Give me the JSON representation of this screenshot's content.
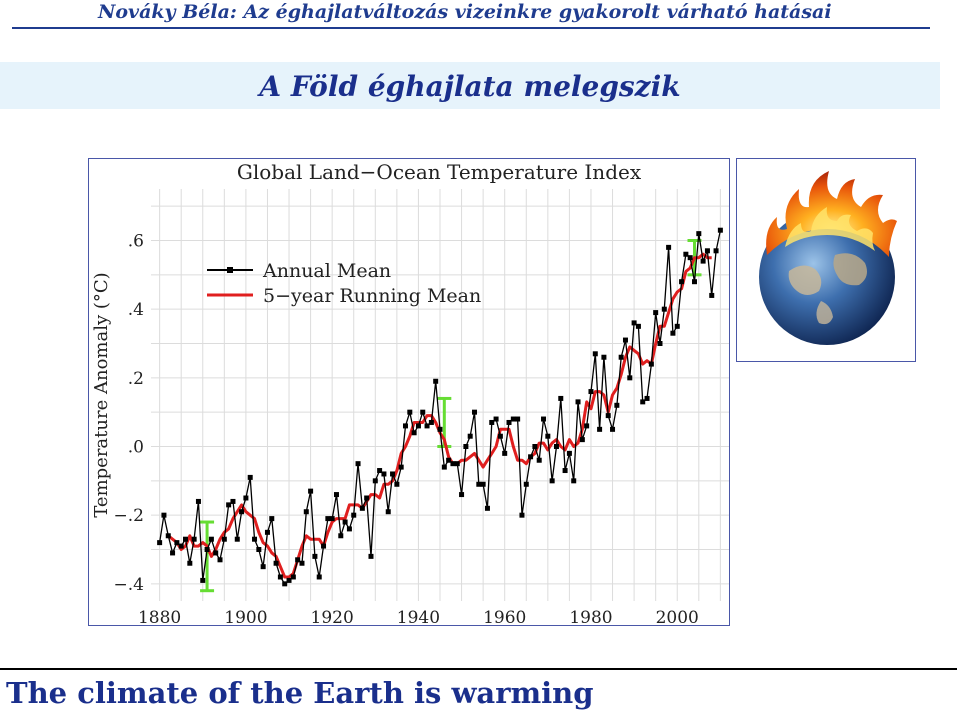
{
  "header": {
    "text": "Nováky Béla: Az éghajlatváltozás vizeinkre gyakorolt várható hatásai"
  },
  "slide": {
    "title": "A Föld éghajlata melegszik",
    "footer": "The climate of the Earth is warming"
  },
  "image": {
    "icon": "burning-earth-globe"
  },
  "colors": {
    "header_text": "#1f3c8f",
    "title_text": "#1a2f8c",
    "title_band": "#e6f3fb",
    "annual_mean": "#000000",
    "running_mean": "#e01f1f",
    "uncertainty_bars": "#66dd33"
  },
  "chart_data": {
    "type": "line",
    "title": "Global Land−Ocean Temperature Index",
    "ylabel": "Temperature Anomaly (°C)",
    "xlabel": "",
    "xlim": [
      1878,
      2012
    ],
    "ylim": [
      -0.45,
      0.75
    ],
    "x_ticks": [
      1880,
      1900,
      1920,
      1940,
      1960,
      1980,
      2000
    ],
    "y_ticks": [
      0.6,
      0.4,
      0.2,
      0.0,
      -0.2,
      -0.4
    ],
    "y_tick_labels": [
      ".6",
      ".4",
      ".2",
      ".0",
      "−.2",
      "−.4"
    ],
    "grid": true,
    "legend_position": "top-left",
    "series": [
      {
        "name": "Annual Mean",
        "marker": "square",
        "x": [
          1880,
          1881,
          1882,
          1883,
          1884,
          1885,
          1886,
          1887,
          1888,
          1889,
          1890,
          1891,
          1892,
          1893,
          1894,
          1895,
          1896,
          1897,
          1898,
          1899,
          1900,
          1901,
          1902,
          1903,
          1904,
          1905,
          1906,
          1907,
          1908,
          1909,
          1910,
          1911,
          1912,
          1913,
          1914,
          1915,
          1916,
          1917,
          1918,
          1919,
          1920,
          1921,
          1922,
          1923,
          1924,
          1925,
          1926,
          1927,
          1928,
          1929,
          1930,
          1931,
          1932,
          1933,
          1934,
          1935,
          1936,
          1937,
          1938,
          1939,
          1940,
          1941,
          1942,
          1943,
          1944,
          1945,
          1946,
          1947,
          1948,
          1949,
          1950,
          1951,
          1952,
          1953,
          1954,
          1955,
          1956,
          1957,
          1958,
          1959,
          1960,
          1961,
          1962,
          1963,
          1964,
          1965,
          1966,
          1967,
          1968,
          1969,
          1970,
          1971,
          1972,
          1973,
          1974,
          1975,
          1976,
          1977,
          1978,
          1979,
          1980,
          1981,
          1982,
          1983,
          1984,
          1985,
          1986,
          1987,
          1988,
          1989,
          1990,
          1991,
          1992,
          1993,
          1994,
          1995,
          1996,
          1997,
          1998,
          1999,
          2000,
          2001,
          2002,
          2003,
          2004,
          2005,
          2006,
          2007,
          2008,
          2009,
          2010
        ],
        "values": [
          -0.28,
          -0.2,
          -0.26,
          -0.31,
          -0.28,
          -0.29,
          -0.27,
          -0.34,
          -0.27,
          -0.16,
          -0.39,
          -0.3,
          -0.27,
          -0.31,
          -0.33,
          -0.27,
          -0.17,
          -0.16,
          -0.27,
          -0.19,
          -0.15,
          -0.09,
          -0.27,
          -0.3,
          -0.35,
          -0.25,
          -0.21,
          -0.34,
          -0.38,
          -0.4,
          -0.39,
          -0.38,
          -0.33,
          -0.34,
          -0.19,
          -0.13,
          -0.32,
          -0.38,
          -0.29,
          -0.21,
          -0.21,
          -0.14,
          -0.26,
          -0.22,
          -0.24,
          -0.2,
          -0.05,
          -0.18,
          -0.15,
          -0.32,
          -0.1,
          -0.07,
          -0.08,
          -0.19,
          -0.08,
          -0.11,
          -0.06,
          0.06,
          0.1,
          0.04,
          0.06,
          0.1,
          0.06,
          0.07,
          0.19,
          0.05,
          -0.06,
          -0.04,
          -0.05,
          -0.05,
          -0.14,
          0.0,
          0.03,
          0.1,
          -0.11,
          -0.11,
          -0.18,
          0.07,
          0.08,
          0.03,
          -0.02,
          0.07,
          0.08,
          0.08,
          -0.2,
          -0.11,
          -0.03,
          0.0,
          -0.04,
          0.08,
          0.03,
          -0.1,
          0.0,
          0.14,
          -0.07,
          -0.02,
          -0.1,
          0.13,
          0.02,
          0.06,
          0.16,
          0.27,
          0.05,
          0.26,
          0.09,
          0.05,
          0.12,
          0.26,
          0.31,
          0.2,
          0.36,
          0.35,
          0.13,
          0.14,
          0.24,
          0.39,
          0.3,
          0.4,
          0.58,
          0.33,
          0.35,
          0.48,
          0.56,
          0.55,
          0.48,
          0.62,
          0.54,
          0.57,
          0.44,
          0.57,
          0.63
        ]
      },
      {
        "name": "5−year Running Mean",
        "x": [
          1882,
          1883,
          1884,
          1885,
          1886,
          1887,
          1888,
          1889,
          1890,
          1891,
          1892,
          1893,
          1894,
          1895,
          1896,
          1897,
          1898,
          1899,
          1900,
          1901,
          1902,
          1903,
          1904,
          1905,
          1906,
          1907,
          1908,
          1909,
          1910,
          1911,
          1912,
          1913,
          1914,
          1915,
          1916,
          1917,
          1918,
          1919,
          1920,
          1921,
          1922,
          1923,
          1924,
          1925,
          1926,
          1927,
          1928,
          1929,
          1930,
          1931,
          1932,
          1933,
          1934,
          1935,
          1936,
          1937,
          1938,
          1939,
          1940,
          1941,
          1942,
          1943,
          1944,
          1945,
          1946,
          1947,
          1948,
          1949,
          1950,
          1951,
          1952,
          1953,
          1954,
          1955,
          1956,
          1957,
          1958,
          1959,
          1960,
          1961,
          1962,
          1963,
          1964,
          1965,
          1966,
          1967,
          1968,
          1969,
          1970,
          1971,
          1972,
          1973,
          1974,
          1975,
          1976,
          1977,
          1978,
          1979,
          1980,
          1981,
          1982,
          1983,
          1984,
          1985,
          1986,
          1987,
          1988,
          1989,
          1990,
          1991,
          1992,
          1993,
          1994,
          1995,
          1996,
          1997,
          1998,
          1999,
          2000,
          2001,
          2002,
          2003,
          2004,
          2005,
          2006,
          2007,
          2008
        ],
        "values": [
          -0.26,
          -0.27,
          -0.28,
          -0.3,
          -0.29,
          -0.26,
          -0.29,
          -0.29,
          -0.28,
          -0.29,
          -0.32,
          -0.3,
          -0.27,
          -0.25,
          -0.24,
          -0.21,
          -0.19,
          -0.17,
          -0.19,
          -0.2,
          -0.21,
          -0.25,
          -0.28,
          -0.29,
          -0.31,
          -0.32,
          -0.35,
          -0.38,
          -0.38,
          -0.37,
          -0.33,
          -0.29,
          -0.26,
          -0.27,
          -0.27,
          -0.27,
          -0.29,
          -0.25,
          -0.22,
          -0.21,
          -0.21,
          -0.21,
          -0.17,
          -0.17,
          -0.17,
          -0.18,
          -0.16,
          -0.14,
          -0.14,
          -0.15,
          -0.11,
          -0.11,
          -0.1,
          -0.07,
          -0.02,
          0.0,
          0.03,
          0.07,
          0.07,
          0.07,
          0.09,
          0.09,
          0.07,
          0.04,
          0.02,
          -0.03,
          -0.05,
          -0.05,
          -0.04,
          -0.04,
          -0.03,
          -0.02,
          -0.04,
          -0.06,
          -0.04,
          -0.02,
          0.0,
          0.05,
          0.05,
          0.05,
          0.0,
          -0.04,
          -0.04,
          -0.05,
          -0.03,
          -0.02,
          0.01,
          0.01,
          -0.01,
          0.01,
          0.02,
          0.0,
          -0.01,
          0.02,
          0.0,
          0.01,
          0.05,
          0.13,
          0.11,
          0.16,
          0.16,
          0.15,
          0.1,
          0.15,
          0.17,
          0.21,
          0.26,
          0.29,
          0.28,
          0.27,
          0.24,
          0.25,
          0.24,
          0.3,
          0.35,
          0.35,
          0.39,
          0.43,
          0.45,
          0.46,
          0.51,
          0.52,
          0.55,
          0.55,
          0.56,
          0.55,
          0.55
        ]
      }
    ],
    "uncertainty_bars": [
      {
        "x": 1891,
        "low": -0.42,
        "high": -0.22
      },
      {
        "x": 1946,
        "low": 0.0,
        "high": 0.14
      },
      {
        "x": 2004,
        "low": 0.5,
        "high": 0.6
      }
    ]
  }
}
